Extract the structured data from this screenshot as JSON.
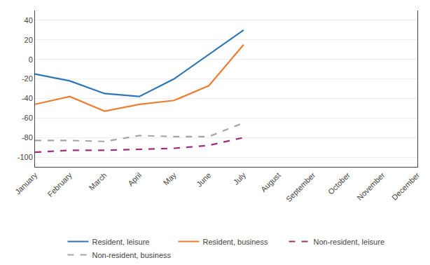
{
  "chart_data": {
    "type": "line",
    "categories": [
      "January",
      "February",
      "March",
      "April",
      "May",
      "June",
      "July",
      "August",
      "September",
      "October",
      "November",
      "December"
    ],
    "series": [
      {
        "name": "Resident, leisure",
        "color": "#2E75B6",
        "line_style": "solid",
        "values": [
          -15,
          -22,
          -35,
          -38,
          -20,
          5,
          30,
          null,
          null,
          null,
          null,
          null
        ]
      },
      {
        "name": "Resident, business",
        "color": "#ED7D31",
        "line_style": "solid",
        "values": [
          -46,
          -38,
          -53,
          -46,
          -42,
          -27,
          15,
          null,
          null,
          null,
          null,
          null
        ]
      },
      {
        "name": "Non-resident, leisure",
        "color": "#9E2F7F",
        "line_style": "dashed",
        "values": [
          -95,
          -93,
          -93,
          -92,
          -91,
          -88,
          -80,
          null,
          null,
          null,
          null,
          null
        ]
      },
      {
        "name": "Non-resident, business",
        "color": "#A5A5A5",
        "line_style": "dashed",
        "values": [
          -83,
          -83,
          -84,
          -78,
          -79,
          -79,
          -65,
          null,
          null,
          null,
          null,
          null
        ]
      }
    ],
    "ylim": [
      -110,
      50
    ],
    "yticks": [
      -100,
      -80,
      -60,
      -40,
      -20,
      0,
      20,
      40
    ],
    "grid": true,
    "legend": "bottom"
  }
}
